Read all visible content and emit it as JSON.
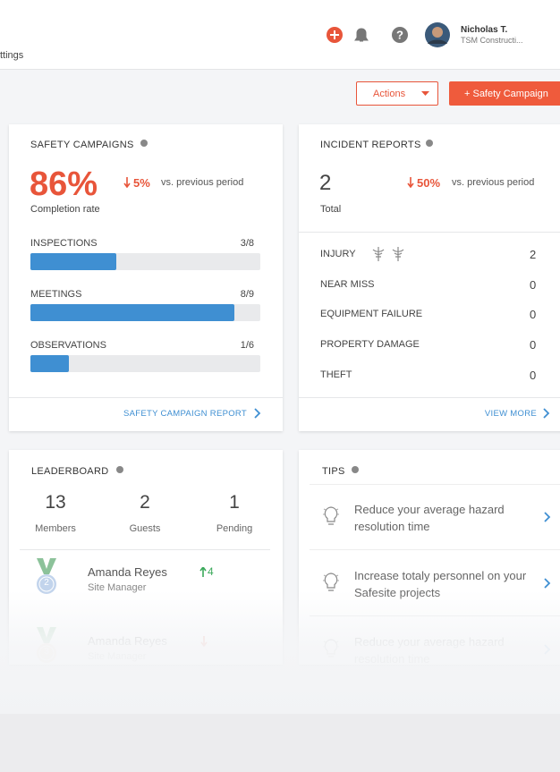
{
  "header": {
    "nav_fragment": "ttings",
    "user": {
      "name": "Nicholas T.",
      "company": "TSM Constructi..."
    }
  },
  "toolbar": {
    "actions": "Actions",
    "primary": "+ Safety Campaign"
  },
  "safety_campaigns": {
    "title": "SAFETY CAMPAIGNS",
    "rate": "86%",
    "change": "5%",
    "comparison": "vs. previous period",
    "rate_label": "Completion rate",
    "items": [
      {
        "name": "INSPECTIONS",
        "progress": "3/8",
        "done": 3,
        "total": 8
      },
      {
        "name": "MEETINGS",
        "progress": "8/9",
        "done": 8,
        "total": 9
      },
      {
        "name": "OBSERVATIONS",
        "progress": "1/6",
        "done": 1,
        "total": 6
      }
    ],
    "link": "SAFETY CAMPAIGN REPORT"
  },
  "incident_reports": {
    "title": "INCIDENT REPORTS",
    "count": "2",
    "change": "50%",
    "comparison": "vs. previous period",
    "count_label": "Total",
    "rows": [
      {
        "name": "INJURY",
        "count": "2"
      },
      {
        "name": "NEAR MISS",
        "count": "0"
      },
      {
        "name": "EQUIPMENT FAILURE",
        "count": "0"
      },
      {
        "name": "PROPERTY DAMAGE",
        "count": "0"
      },
      {
        "name": "THEFT",
        "count": "0"
      }
    ],
    "link": "VIEW MORE"
  },
  "leaderboard": {
    "title": "LEADERBOARD",
    "stats": [
      {
        "value": "13",
        "label": "Members"
      },
      {
        "value": "2",
        "label": "Guests"
      },
      {
        "value": "1",
        "label": "Pending"
      }
    ],
    "people": [
      {
        "name": "Amanda Reyes",
        "role": "Site Manager",
        "rank": "2",
        "change": "4"
      },
      {
        "name": "Amanda Reyes",
        "role": "Site Manager",
        "rank": "3"
      }
    ]
  },
  "tips": {
    "title": "TIPS",
    "items": [
      "Reduce your average hazard resolution time",
      "Increase totaly personnel on your Safesite projects",
      "Reduce your average hazard resolution time"
    ]
  }
}
